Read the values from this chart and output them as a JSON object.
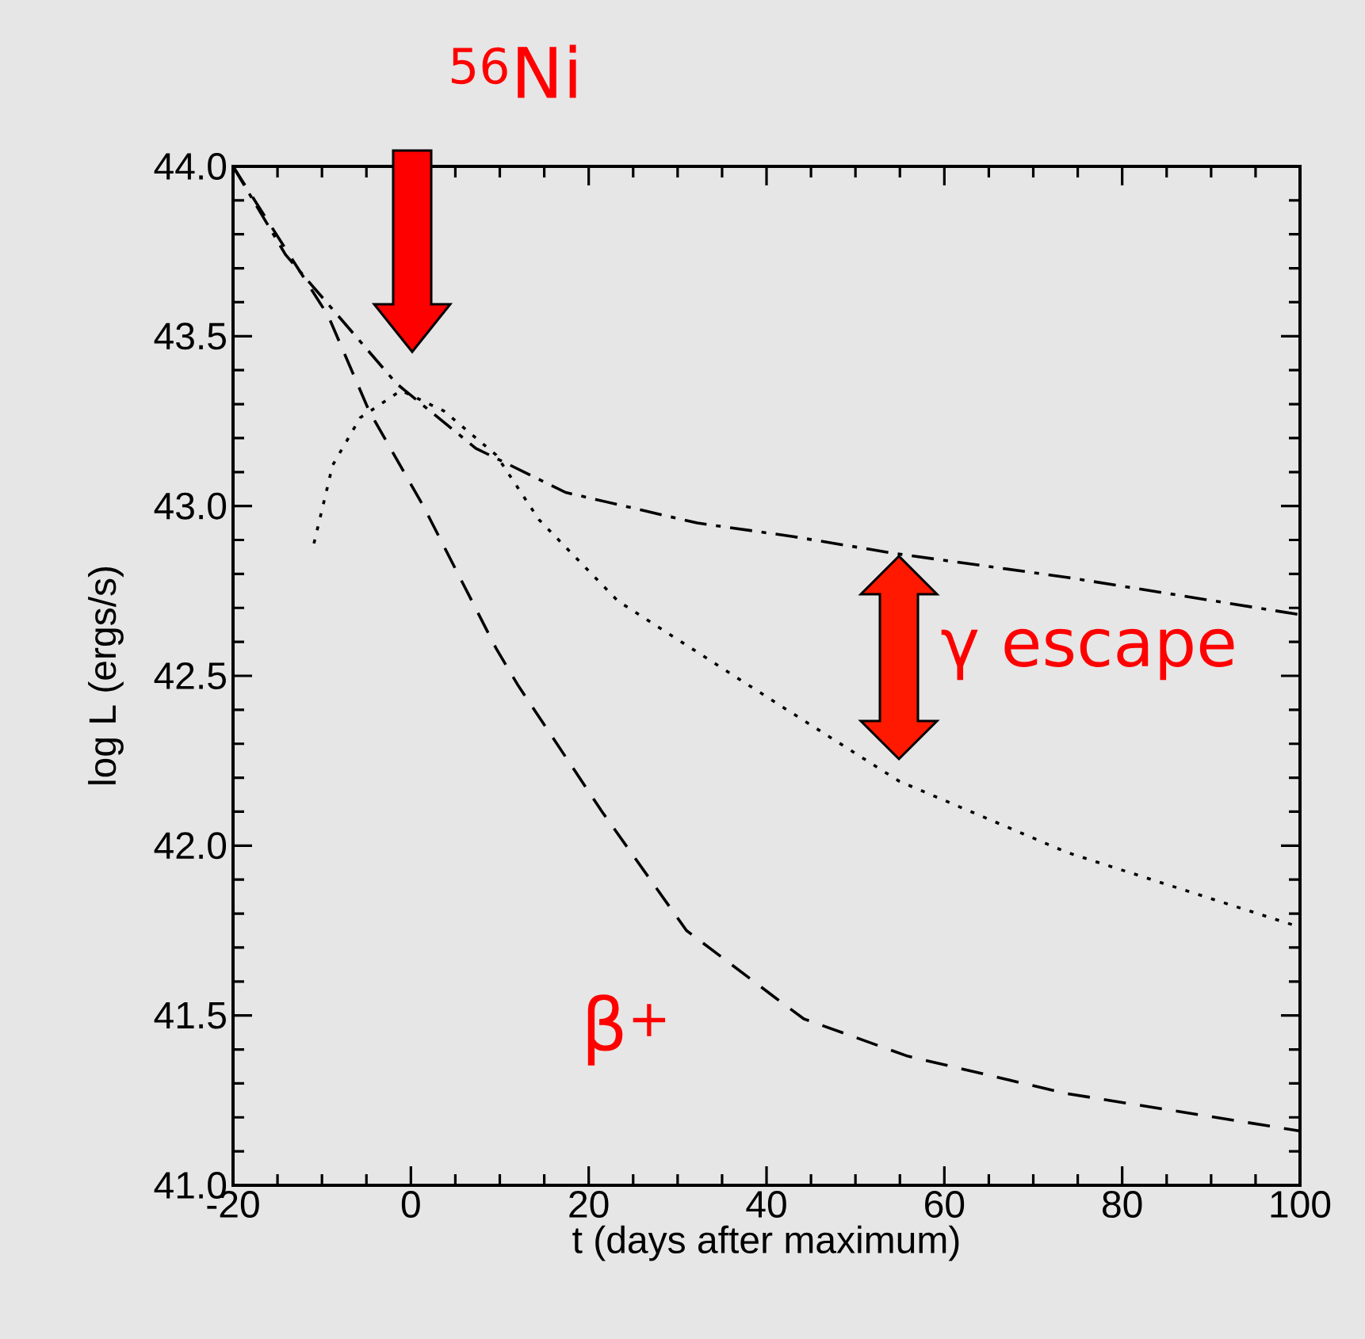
{
  "chart_data": {
    "type": "line",
    "xlabel": "t (days after maximum)",
    "ylabel": "log L (ergs/s)",
    "xlim": [
      -20,
      100
    ],
    "ylim": [
      41.0,
      44.0
    ],
    "xticks": [
      -20,
      0,
      20,
      40,
      60,
      80,
      100
    ],
    "yticks": [
      {
        "value": 41,
        "label": "41.0"
      },
      {
        "value": 41.5,
        "label": "41.5"
      },
      {
        "value": 42,
        "label": "42.0"
      },
      {
        "value": 42.5,
        "label": "42.5"
      },
      {
        "value": 43,
        "label": "43.0"
      },
      {
        "value": 43.5,
        "label": "43.5"
      },
      {
        "value": 44,
        "label": "44.0"
      }
    ],
    "grid": false,
    "marker": "none",
    "series": [
      {
        "color": "#000000",
        "line_style": "dashdot",
        "x": [
          -20,
          -14.1,
          -1.6,
          7.3,
          17.4,
          32.2,
          43,
          54.5,
          73.8,
          100
        ],
        "values": [
          44.0,
          43.74,
          43.36,
          43.17,
          43.04,
          42.95,
          42.91,
          42.86,
          42.79,
          42.68
        ]
      },
      {
        "color": "#000000",
        "line_style": "dashed",
        "x": [
          -20,
          -9.3,
          -4.7,
          1.4,
          9.6,
          12.1,
          21.5,
          31,
          41.1,
          44.2,
          55.9,
          73.8,
          100
        ],
        "values": [
          44.0,
          43.56,
          43.28,
          43.0,
          42.58,
          42.47,
          42.1,
          41.75,
          41.55,
          41.49,
          41.38,
          41.27,
          41.16
        ]
      },
      {
        "color": "#000000",
        "line_style": "dotted",
        "x": [
          -10.9,
          -8.8,
          -5.7,
          -1.1,
          3.7,
          9.6,
          14.4,
          23.3,
          41.1,
          54.9,
          73.8,
          100
        ],
        "values": [
          42.89,
          43.12,
          43.26,
          43.34,
          43.28,
          43.15,
          42.96,
          42.72,
          42.42,
          42.19,
          41.98,
          41.76
        ]
      }
    ],
    "annotations": [
      "$^{56}$Ni",
      "γ escape",
      "β$^{+}$"
    ]
  }
}
